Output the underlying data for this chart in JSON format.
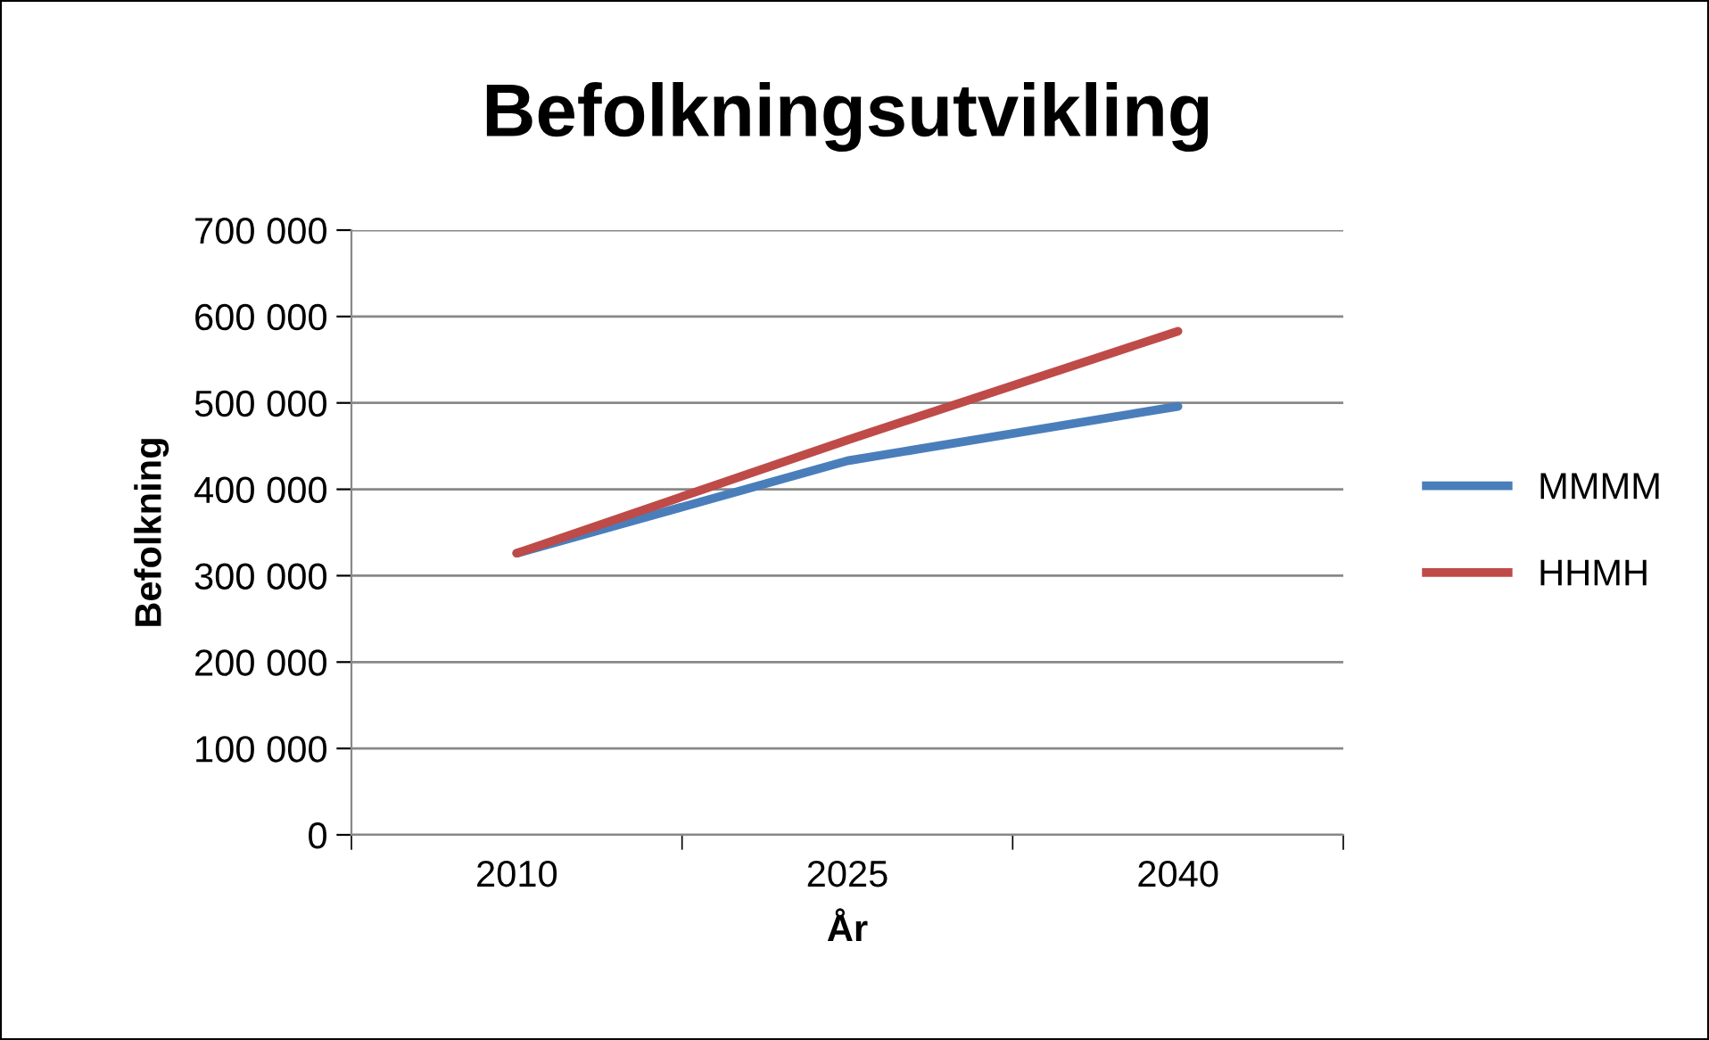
{
  "chart_data": {
    "type": "line",
    "title": "Befolkningsutvikling",
    "xlabel": "År",
    "ylabel": "Befolkning",
    "categories": [
      "2010",
      "2025",
      "2040"
    ],
    "series": [
      {
        "name": "MMMM",
        "color": "#4a7ebb",
        "values": [
          326000,
          433000,
          496000
        ]
      },
      {
        "name": "HHMH",
        "color": "#be4b48",
        "values": [
          326000,
          457000,
          583000
        ]
      }
    ],
    "ylim": [
      0,
      700000
    ],
    "yticks": [
      {
        "value": 0,
        "label": "0"
      },
      {
        "value": 100000,
        "label": "100 000"
      },
      {
        "value": 200000,
        "label": "200 000"
      },
      {
        "value": 300000,
        "label": "300 000"
      },
      {
        "value": 400000,
        "label": "400 000"
      },
      {
        "value": 500000,
        "label": "500 000"
      },
      {
        "value": 600000,
        "label": "600 000"
      },
      {
        "value": 700000,
        "label": "700 000"
      }
    ],
    "grid": "y",
    "legend": "right",
    "marker": "none",
    "line_style": "solid"
  }
}
